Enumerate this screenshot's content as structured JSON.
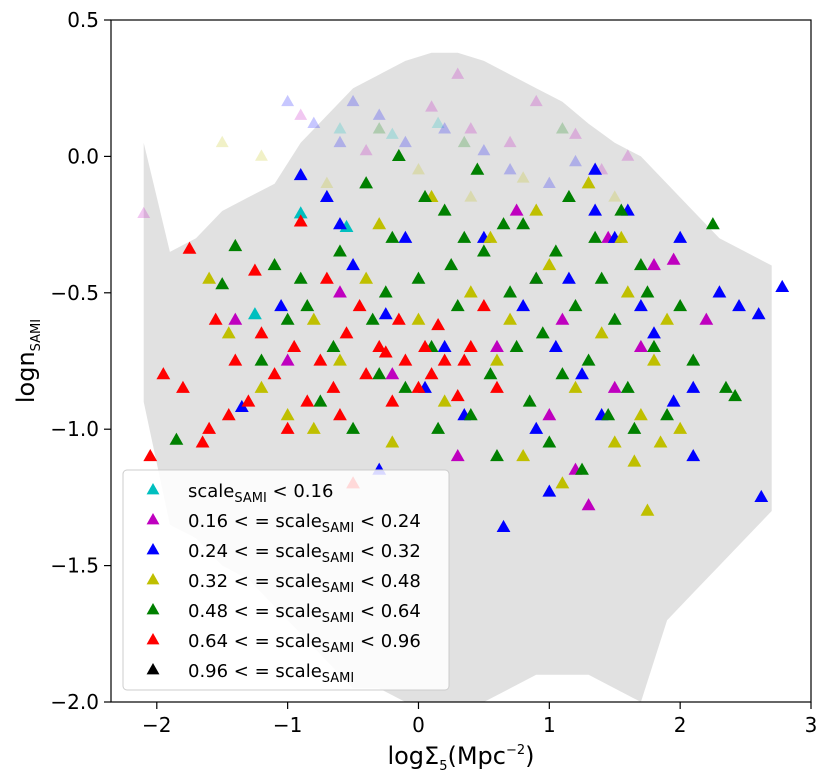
{
  "chart_data": {
    "type": "scatter",
    "title": "",
    "xlabel": "logΣ",
    "xlabel_sub": "5",
    "xlabel_unit": "(Mpc",
    "xlabel_sup": "−2",
    "xlabel_close": ")",
    "ylabel": "logn",
    "ylabel_sub": "SAMI",
    "xlim": [
      -2.35,
      3.0
    ],
    "ylim": [
      -2.0,
      0.5
    ],
    "xticks": [
      {
        "value": -2,
        "label": "−2"
      },
      {
        "value": -1,
        "label": "−1"
      },
      {
        "value": 0,
        "label": "0"
      },
      {
        "value": 1,
        "label": "1"
      },
      {
        "value": 2,
        "label": "2"
      },
      {
        "value": 3,
        "label": "3"
      }
    ],
    "yticks": [
      {
        "value": -2.0,
        "label": "−2.0"
      },
      {
        "value": -1.5,
        "label": "−1.5"
      },
      {
        "value": -1.0,
        "label": "−1.0"
      },
      {
        "value": -0.5,
        "label": "−0.5"
      },
      {
        "value": 0.0,
        "label": "0.0"
      },
      {
        "value": 0.5,
        "label": "0.5"
      }
    ],
    "grid": false,
    "legend_position": "lower-left",
    "error_band_color": "#dcdcdc",
    "error_band": [
      {
        "x": -2.1,
        "lo": -0.9,
        "hi": 0.05
      },
      {
        "x": -1.9,
        "lo": -1.35,
        "hi": -0.35
      },
      {
        "x": -1.7,
        "lo": -1.4,
        "hi": -0.3
      },
      {
        "x": -1.5,
        "lo": -1.5,
        "hi": -0.2
      },
      {
        "x": -1.3,
        "lo": -1.55,
        "hi": -0.15
      },
      {
        "x": -1.1,
        "lo": -1.65,
        "hi": -0.1
      },
      {
        "x": -0.9,
        "lo": -1.75,
        "hi": 0.05
      },
      {
        "x": -0.7,
        "lo": -1.85,
        "hi": 0.15
      },
      {
        "x": -0.5,
        "lo": -1.95,
        "hi": 0.25
      },
      {
        "x": -0.3,
        "lo": -1.95,
        "hi": 0.3
      },
      {
        "x": -0.1,
        "lo": -2.0,
        "hi": 0.35
      },
      {
        "x": 0.1,
        "lo": -2.0,
        "hi": 0.38
      },
      {
        "x": 0.3,
        "lo": -2.0,
        "hi": 0.38
      },
      {
        "x": 0.5,
        "lo": -2.0,
        "hi": 0.35
      },
      {
        "x": 0.7,
        "lo": -1.95,
        "hi": 0.3
      },
      {
        "x": 0.9,
        "lo": -1.9,
        "hi": 0.25
      },
      {
        "x": 1.1,
        "lo": -1.9,
        "hi": 0.2
      },
      {
        "x": 1.3,
        "lo": -1.9,
        "hi": 0.12
      },
      {
        "x": 1.5,
        "lo": -1.95,
        "hi": 0.05
      },
      {
        "x": 1.7,
        "lo": -2.0,
        "hi": 0.0
      },
      {
        "x": 1.9,
        "lo": -1.7,
        "hi": -0.1
      },
      {
        "x": 2.1,
        "lo": -1.6,
        "hi": -0.2
      },
      {
        "x": 2.3,
        "lo": -1.5,
        "hi": -0.3
      },
      {
        "x": 2.5,
        "lo": -1.4,
        "hi": -0.35
      },
      {
        "x": 2.7,
        "lo": -1.3,
        "hi": -0.4
      }
    ],
    "series": [
      {
        "name": "scale < 0.16",
        "legend_label": "scale",
        "legend_sub": "SAMI",
        "legend_suffix": " < 0.16",
        "color": "#00bfbf",
        "points": [
          [
            -1.25,
            -0.58
          ],
          [
            -0.9,
            -0.21
          ],
          [
            -0.55,
            -0.26
          ]
        ],
        "faded_points": [
          [
            -0.6,
            0.1
          ],
          [
            -0.2,
            0.08
          ],
          [
            0.15,
            0.12
          ]
        ]
      },
      {
        "name": "0.16 <= scale < 0.24",
        "legend_label": "0.16 < = scale",
        "legend_sub": "SAMI",
        "legend_suffix": " < 0.24",
        "color": "#bf00bf",
        "points": [
          [
            -1.4,
            -0.6
          ],
          [
            -1.0,
            -0.75
          ],
          [
            -0.6,
            -0.5
          ],
          [
            0.3,
            -1.1
          ],
          [
            0.9,
            -0.45
          ],
          [
            1.2,
            -1.15
          ],
          [
            1.5,
            -0.85
          ],
          [
            1.8,
            -0.4
          ],
          [
            1.95,
            -0.38
          ],
          [
            2.2,
            -0.6
          ],
          [
            0.6,
            -0.7
          ],
          [
            1.0,
            -0.95
          ],
          [
            1.3,
            -1.28
          ],
          [
            -0.2,
            -0.8
          ],
          [
            1.7,
            -0.7
          ],
          [
            0.75,
            -0.2
          ],
          [
            1.1,
            -0.6
          ],
          [
            1.45,
            -0.3
          ]
        ],
        "faded_points": [
          [
            -0.9,
            0.15
          ],
          [
            -0.4,
            0.02
          ],
          [
            0.1,
            0.18
          ],
          [
            0.4,
            0.1
          ],
          [
            0.7,
            0.05
          ],
          [
            0.9,
            0.2
          ],
          [
            1.2,
            0.08
          ],
          [
            1.4,
            -0.05
          ],
          [
            1.6,
            0.0
          ],
          [
            -2.1,
            -0.21
          ],
          [
            0.3,
            0.3
          ]
        ]
      },
      {
        "name": "0.24 <= scale < 0.32",
        "legend_label": "0.24 < = scale",
        "legend_sub": "SAMI",
        "legend_suffix": " < 0.32",
        "color": "#0000ff",
        "points": [
          [
            -0.9,
            -0.07
          ],
          [
            -0.6,
            -0.25
          ],
          [
            -0.5,
            -0.4
          ],
          [
            -0.25,
            -0.58
          ],
          [
            0.2,
            -0.7
          ],
          [
            0.5,
            -0.3
          ],
          [
            0.65,
            -1.36
          ],
          [
            0.9,
            -1.0
          ],
          [
            1.0,
            -1.23
          ],
          [
            1.25,
            -0.8
          ],
          [
            1.35,
            -0.05
          ],
          [
            1.5,
            -0.3
          ],
          [
            1.7,
            -0.55
          ],
          [
            1.95,
            -0.9
          ],
          [
            2.1,
            -0.85
          ],
          [
            2.3,
            -0.5
          ],
          [
            2.45,
            -0.55
          ],
          [
            2.6,
            -0.58
          ],
          [
            2.62,
            -1.25
          ],
          [
            2.78,
            -0.48
          ],
          [
            2.1,
            -1.1
          ],
          [
            1.8,
            -0.65
          ],
          [
            1.4,
            -0.95
          ],
          [
            0.8,
            -0.55
          ],
          [
            -0.1,
            -0.3
          ],
          [
            -1.35,
            -0.92
          ],
          [
            -0.7,
            -0.15
          ],
          [
            -1.05,
            -0.55
          ],
          [
            1.15,
            -0.45
          ],
          [
            0.35,
            -0.95
          ],
          [
            1.6,
            -0.2
          ],
          [
            2.0,
            -0.3
          ],
          [
            1.35,
            -0.2
          ],
          [
            -0.3,
            -1.15
          ],
          [
            0.05,
            -0.85
          ],
          [
            1.05,
            -0.7
          ]
        ],
        "faded_points": [
          [
            -1.0,
            0.2
          ],
          [
            -0.8,
            0.12
          ],
          [
            -0.5,
            0.2
          ],
          [
            -0.3,
            0.15
          ],
          [
            -0.1,
            0.05
          ],
          [
            0.2,
            0.1
          ],
          [
            0.5,
            0.02
          ],
          [
            0.7,
            -0.05
          ],
          [
            1.0,
            -0.1
          ],
          [
            1.2,
            -0.02
          ],
          [
            -0.6,
            0.05
          ]
        ]
      },
      {
        "name": "0.32 <= scale < 0.48",
        "legend_label": "0.32 < = scale",
        "legend_sub": "SAMI",
        "legend_suffix": " < 0.48",
        "color": "#bfbf00",
        "points": [
          [
            -1.45,
            -0.65
          ],
          [
            -1.2,
            -0.85
          ],
          [
            -1.0,
            -0.95
          ],
          [
            -0.8,
            -0.6
          ],
          [
            -0.6,
            -0.75
          ],
          [
            -0.4,
            -0.45
          ],
          [
            -0.2,
            -1.05
          ],
          [
            0.0,
            -0.6
          ],
          [
            0.2,
            -0.9
          ],
          [
            0.4,
            -0.5
          ],
          [
            0.6,
            -0.75
          ],
          [
            0.8,
            -1.1
          ],
          [
            1.0,
            -0.4
          ],
          [
            1.2,
            -0.85
          ],
          [
            1.4,
            -0.65
          ],
          [
            1.5,
            -1.05
          ],
          [
            1.6,
            -0.5
          ],
          [
            1.7,
            -0.95
          ],
          [
            1.75,
            -1.3
          ],
          [
            1.8,
            -0.75
          ],
          [
            1.9,
            -0.6
          ],
          [
            2.0,
            -1.0
          ],
          [
            0.9,
            -0.2
          ],
          [
            1.3,
            -0.1
          ],
          [
            -0.3,
            -0.25
          ],
          [
            0.55,
            -0.3
          ],
          [
            1.1,
            -1.2
          ],
          [
            1.65,
            -1.12
          ],
          [
            -1.6,
            -0.45
          ],
          [
            0.1,
            -0.15
          ],
          [
            1.55,
            -0.3
          ],
          [
            0.7,
            -0.6
          ],
          [
            1.85,
            -1.05
          ],
          [
            -0.8,
            -1.0
          ]
        ],
        "faded_points": [
          [
            -1.5,
            0.05
          ],
          [
            -1.2,
            0.0
          ],
          [
            -0.7,
            -0.1
          ],
          [
            0.0,
            -0.05
          ],
          [
            0.4,
            -0.15
          ],
          [
            0.8,
            -0.08
          ],
          [
            1.5,
            -0.15
          ]
        ]
      },
      {
        "name": "0.48 <= scale < 0.64",
        "legend_label": "0.48 < = scale",
        "legend_sub": "SAMI",
        "legend_suffix": " < 0.64",
        "color": "#008000",
        "points": [
          [
            -1.85,
            -1.04
          ],
          [
            -1.5,
            -0.47
          ],
          [
            -1.4,
            -0.33
          ],
          [
            -1.2,
            -0.75
          ],
          [
            -1.0,
            -0.6
          ],
          [
            -0.9,
            -0.45
          ],
          [
            -0.75,
            -0.9
          ],
          [
            -0.6,
            -0.35
          ],
          [
            -0.5,
            -1.0
          ],
          [
            -0.35,
            -0.6
          ],
          [
            -0.2,
            -0.3
          ],
          [
            -0.1,
            -0.85
          ],
          [
            0.0,
            -0.45
          ],
          [
            0.1,
            -0.7
          ],
          [
            0.2,
            -0.2
          ],
          [
            0.3,
            -0.55
          ],
          [
            0.4,
            -0.95
          ],
          [
            0.5,
            -0.35
          ],
          [
            0.55,
            -0.8
          ],
          [
            0.6,
            -1.1
          ],
          [
            0.7,
            -0.5
          ],
          [
            0.8,
            -0.25
          ],
          [
            0.85,
            -0.9
          ],
          [
            0.95,
            -0.65
          ],
          [
            1.0,
            -1.05
          ],
          [
            1.05,
            -0.35
          ],
          [
            1.1,
            -0.8
          ],
          [
            1.2,
            -0.55
          ],
          [
            1.25,
            -1.15
          ],
          [
            1.3,
            -0.75
          ],
          [
            1.4,
            -0.45
          ],
          [
            1.45,
            -0.95
          ],
          [
            1.5,
            -0.6
          ],
          [
            1.6,
            -0.85
          ],
          [
            1.7,
            -0.4
          ],
          [
            1.8,
            -0.7
          ],
          [
            1.9,
            -0.95
          ],
          [
            2.0,
            -0.55
          ],
          [
            2.1,
            -0.75
          ],
          [
            2.25,
            -0.25
          ],
          [
            2.35,
            -0.85
          ],
          [
            2.42,
            -0.88
          ],
          [
            0.05,
            -0.15
          ],
          [
            0.45,
            -0.05
          ],
          [
            -0.4,
            -0.1
          ],
          [
            -0.15,
            0.0
          ],
          [
            0.65,
            -0.25
          ],
          [
            1.15,
            -0.15
          ],
          [
            0.25,
            -0.4
          ],
          [
            -0.65,
            -0.7
          ],
          [
            -0.25,
            -0.5
          ],
          [
            0.9,
            -0.45
          ],
          [
            1.35,
            -0.3
          ],
          [
            1.65,
            -1.0
          ],
          [
            0.15,
            -1.0
          ],
          [
            -0.85,
            -0.55
          ],
          [
            -0.3,
            -0.8
          ],
          [
            0.75,
            -0.7
          ],
          [
            1.55,
            -0.2
          ],
          [
            -1.1,
            -0.4
          ],
          [
            0.35,
            -0.3
          ],
          [
            1.75,
            -0.5
          ]
        ],
        "faded_points": [
          [
            -0.3,
            0.1
          ],
          [
            0.35,
            0.05
          ],
          [
            1.1,
            0.1
          ]
        ]
      },
      {
        "name": "0.64 <= scale < 0.96",
        "legend_label": "0.64 < = scale",
        "legend_sub": "SAMI",
        "legend_suffix": " < 0.96",
        "color": "#ff0000",
        "points": [
          [
            -2.05,
            -1.1
          ],
          [
            -1.95,
            -0.8
          ],
          [
            -1.8,
            -0.85
          ],
          [
            -1.75,
            -0.34
          ],
          [
            -1.6,
            -1.0
          ],
          [
            -1.55,
            -0.6
          ],
          [
            -1.4,
            -0.75
          ],
          [
            -1.3,
            -0.9
          ],
          [
            -1.2,
            -0.65
          ],
          [
            -1.1,
            -0.8
          ],
          [
            -1.0,
            -1.0
          ],
          [
            -0.95,
            -0.7
          ],
          [
            -0.85,
            -0.9
          ],
          [
            -0.75,
            -0.75
          ],
          [
            -0.65,
            -0.85
          ],
          [
            -0.55,
            -0.65
          ],
          [
            -0.5,
            -1.2
          ],
          [
            -0.4,
            -0.8
          ],
          [
            -0.3,
            -0.7
          ],
          [
            -0.2,
            -0.9
          ],
          [
            -0.1,
            -0.75
          ],
          [
            0.0,
            -0.85
          ],
          [
            0.1,
            -0.8
          ],
          [
            0.2,
            -0.75
          ],
          [
            0.3,
            -0.88
          ],
          [
            0.4,
            -0.7
          ],
          [
            0.5,
            -0.55
          ],
          [
            0.6,
            -0.85
          ],
          [
            -1.25,
            -0.42
          ],
          [
            -0.9,
            -0.24
          ],
          [
            -0.7,
            -0.45
          ],
          [
            -0.45,
            -0.55
          ],
          [
            -0.15,
            -0.6
          ],
          [
            0.15,
            -0.62
          ],
          [
            0.35,
            -0.75
          ],
          [
            -1.65,
            -1.05
          ],
          [
            -1.45,
            -0.95
          ],
          [
            -0.6,
            -0.95
          ],
          [
            -0.25,
            -0.72
          ],
          [
            0.05,
            -0.7
          ]
        ],
        "faded_points": []
      },
      {
        "name": "0.96 <= scale",
        "legend_label": "0.96 < = scale",
        "legend_sub": "SAMI",
        "legend_suffix": "",
        "color": "#000000",
        "points": [],
        "faded_points": []
      }
    ]
  }
}
